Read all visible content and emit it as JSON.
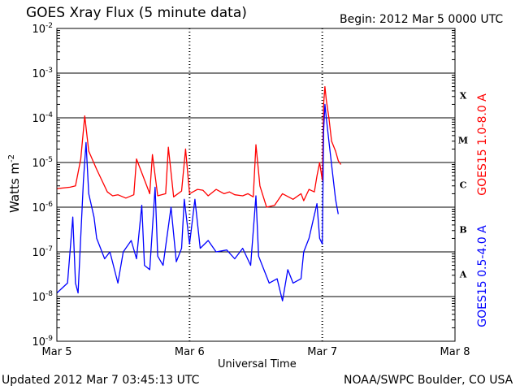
{
  "header": {
    "title": "GOES Xray Flux (5 minute data)",
    "begin": "Begin:  2012 Mar 5 0000 UTC"
  },
  "footer": {
    "updated": "Updated 2012 Mar  7 03:45:13 UTC",
    "credit": "NOAA/SWPC Boulder, CO USA"
  },
  "chart_data": {
    "type": "line",
    "title": "GOES Xray Flux (5 minute data)",
    "xlabel": "Universal Time",
    "ylabel": "Watts m-2",
    "ylabel_base": "Watts m",
    "ylabel_exp": "-2",
    "x_unit": "days since 2012 Mar 5 0000 UTC",
    "xlim": [
      0,
      3
    ],
    "ylim_log10": [
      -9,
      -2
    ],
    "y_scale": "log",
    "grid": true,
    "x_ticks": [
      {
        "value": 0,
        "label": "Mar 5"
      },
      {
        "value": 1,
        "label": "Mar 6"
      },
      {
        "value": 2,
        "label": "Mar 7"
      },
      {
        "value": 3,
        "label": "Mar 8"
      }
    ],
    "y_ticks": [
      {
        "exp": -9,
        "base": "10",
        "sup": "-9"
      },
      {
        "exp": -8,
        "base": "10",
        "sup": "-8"
      },
      {
        "exp": -7,
        "base": "10",
        "sup": "-7"
      },
      {
        "exp": -6,
        "base": "10",
        "sup": "-6"
      },
      {
        "exp": -5,
        "base": "10",
        "sup": "-5"
      },
      {
        "exp": -4,
        "base": "10",
        "sup": "-4"
      },
      {
        "exp": -3,
        "base": "10",
        "sup": "-3"
      },
      {
        "exp": -2,
        "base": "10",
        "sup": "-2"
      }
    ],
    "flare_classes": [
      {
        "label": "X",
        "log10": -3.5
      },
      {
        "label": "M",
        "log10": -4.5
      },
      {
        "label": "C",
        "log10": -5.5
      },
      {
        "label": "B",
        "log10": -6.5
      },
      {
        "label": "A",
        "log10": -7.5
      }
    ],
    "series": [
      {
        "name": "GOES15 1.0-8.0 A",
        "color": "#ff0000",
        "x": [
          0.0,
          0.1,
          0.14,
          0.18,
          0.21,
          0.24,
          0.3,
          0.38,
          0.42,
          0.46,
          0.52,
          0.58,
          0.6,
          0.7,
          0.72,
          0.76,
          0.82,
          0.84,
          0.88,
          0.94,
          0.97,
          1.0,
          1.06,
          1.1,
          1.14,
          1.2,
          1.26,
          1.3,
          1.34,
          1.4,
          1.44,
          1.48,
          1.5,
          1.53,
          1.58,
          1.64,
          1.7,
          1.78,
          1.84,
          1.86,
          1.9,
          1.94,
          1.96,
          1.98,
          2.0,
          2.01,
          2.02,
          2.03,
          2.05,
          2.07,
          2.1,
          2.12,
          2.14
        ],
        "y": [
          2.6e-06,
          2.8e-06,
          3e-06,
          1.2e-05,
          0.00011,
          1.8e-05,
          7e-06,
          2.2e-06,
          1.8e-06,
          1.9e-06,
          1.6e-06,
          1.9e-06,
          1.2e-05,
          2e-06,
          1.5e-05,
          1.8e-06,
          2e-06,
          2.2e-05,
          1.7e-06,
          2.3e-06,
          2e-05,
          2e-06,
          2.5e-06,
          2.4e-06,
          1.8e-06,
          2.5e-06,
          2e-06,
          2.2e-06,
          1.9e-06,
          1.8e-06,
          2e-06,
          1.7e-06,
          2.5e-05,
          3e-06,
          1e-06,
          1.1e-06,
          2e-06,
          1.5e-06,
          2e-06,
          1.4e-06,
          2.5e-06,
          2.2e-06,
          5e-06,
          1e-05,
          4e-06,
          0.0002,
          0.0005,
          0.00025,
          0.0001,
          3e-05,
          1.8e-05,
          1.1e-05,
          9e-06
        ]
      },
      {
        "name": "GOES15 0.5-4.0 A",
        "color": "#0000ff",
        "x": [
          0.0,
          0.08,
          0.12,
          0.14,
          0.16,
          0.2,
          0.22,
          0.24,
          0.28,
          0.3,
          0.36,
          0.4,
          0.46,
          0.5,
          0.56,
          0.6,
          0.64,
          0.66,
          0.7,
          0.74,
          0.76,
          0.8,
          0.86,
          0.9,
          0.94,
          0.96,
          1.0,
          1.04,
          1.08,
          1.14,
          1.2,
          1.28,
          1.34,
          1.4,
          1.46,
          1.5,
          1.52,
          1.56,
          1.6,
          1.66,
          1.7,
          1.74,
          1.78,
          1.84,
          1.86,
          1.9,
          1.96,
          1.98,
          2.0,
          2.01,
          2.02,
          2.03,
          2.05,
          2.08,
          2.1,
          2.12
        ],
        "y": [
          1.2e-08,
          2e-08,
          6e-07,
          2e-08,
          1.2e-08,
          4e-06,
          2.8e-05,
          2e-06,
          6e-07,
          2e-07,
          7e-08,
          1e-07,
          2e-08,
          1e-07,
          1.8e-07,
          7e-08,
          1.1e-06,
          5e-08,
          4e-08,
          2.8e-06,
          8e-08,
          5e-08,
          1e-06,
          6e-08,
          1.2e-07,
          1.5e-06,
          1.5e-07,
          1.5e-06,
          1.2e-07,
          1.8e-07,
          1e-07,
          1.1e-07,
          7e-08,
          1.2e-07,
          5e-08,
          1.8e-06,
          8e-08,
          4e-08,
          2e-08,
          2.5e-08,
          8e-09,
          4e-08,
          2e-08,
          2.5e-08,
          1e-07,
          2e-07,
          1.2e-06,
          2e-07,
          1.5e-07,
          5e-05,
          0.0002,
          0.0001,
          3e-05,
          5e-06,
          1.5e-06,
          7e-07
        ]
      }
    ]
  }
}
